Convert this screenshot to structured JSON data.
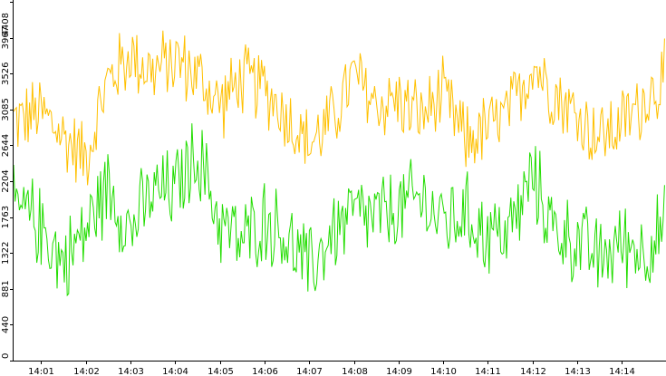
{
  "chart_data": {
    "type": "line",
    "title": "",
    "xlabel": "",
    "ylabel": "",
    "grid": false,
    "legend": false,
    "ylim": [
      0,
      4408
    ],
    "yticks": [
      0,
      440,
      881,
      1322,
      1763,
      2204,
      2644,
      3085,
      3526,
      3967,
      4408
    ],
    "xlim": [
      "14:00:23",
      "14:14:58"
    ],
    "xticks": [
      "14:01",
      "14:02",
      "14:03",
      "14:04",
      "14:05",
      "14:06",
      "14:07",
      "14:08",
      "14:09",
      "14:10",
      "14:11",
      "14:12",
      "14:13",
      "14:14"
    ],
    "x": [
      "14:00:30",
      "14:01:00",
      "14:01:30",
      "14:02:00",
      "14:02:30",
      "14:03:00",
      "14:03:30",
      "14:04:00",
      "14:04:30",
      "14:05:00",
      "14:05:30",
      "14:06:00",
      "14:06:30",
      "14:07:00",
      "14:07:30",
      "14:08:00",
      "14:08:30",
      "14:09:00",
      "14:09:30",
      "14:10:00",
      "14:10:30",
      "14:11:00",
      "14:11:30",
      "14:12:00",
      "14:12:30",
      "14:13:00",
      "14:13:30",
      "14:14:00",
      "14:14:30",
      "14:14:58"
    ],
    "series": [
      {
        "color": "#ffc000",
        "values": [
          2950,
          3050,
          2750,
          2500,
          3450,
          3750,
          3550,
          3700,
          3500,
          3150,
          3450,
          3350,
          3000,
          2650,
          2950,
          3500,
          3150,
          3200,
          3000,
          3250,
          2700,
          2850,
          3050,
          3650,
          3300,
          3000,
          2750,
          2900,
          3200,
          3500
        ]
      },
      {
        "color": "#22dd00",
        "values": [
          1850,
          1650,
          1200,
          1600,
          2150,
          1600,
          2050,
          2100,
          2550,
          1700,
          1450,
          1750,
          1500,
          1100,
          1550,
          1800,
          1750,
          1850,
          2000,
          1700,
          1800,
          1550,
          1600,
          2250,
          1600,
          1450,
          1250,
          1450,
          1350,
          1650
        ]
      }
    ]
  }
}
